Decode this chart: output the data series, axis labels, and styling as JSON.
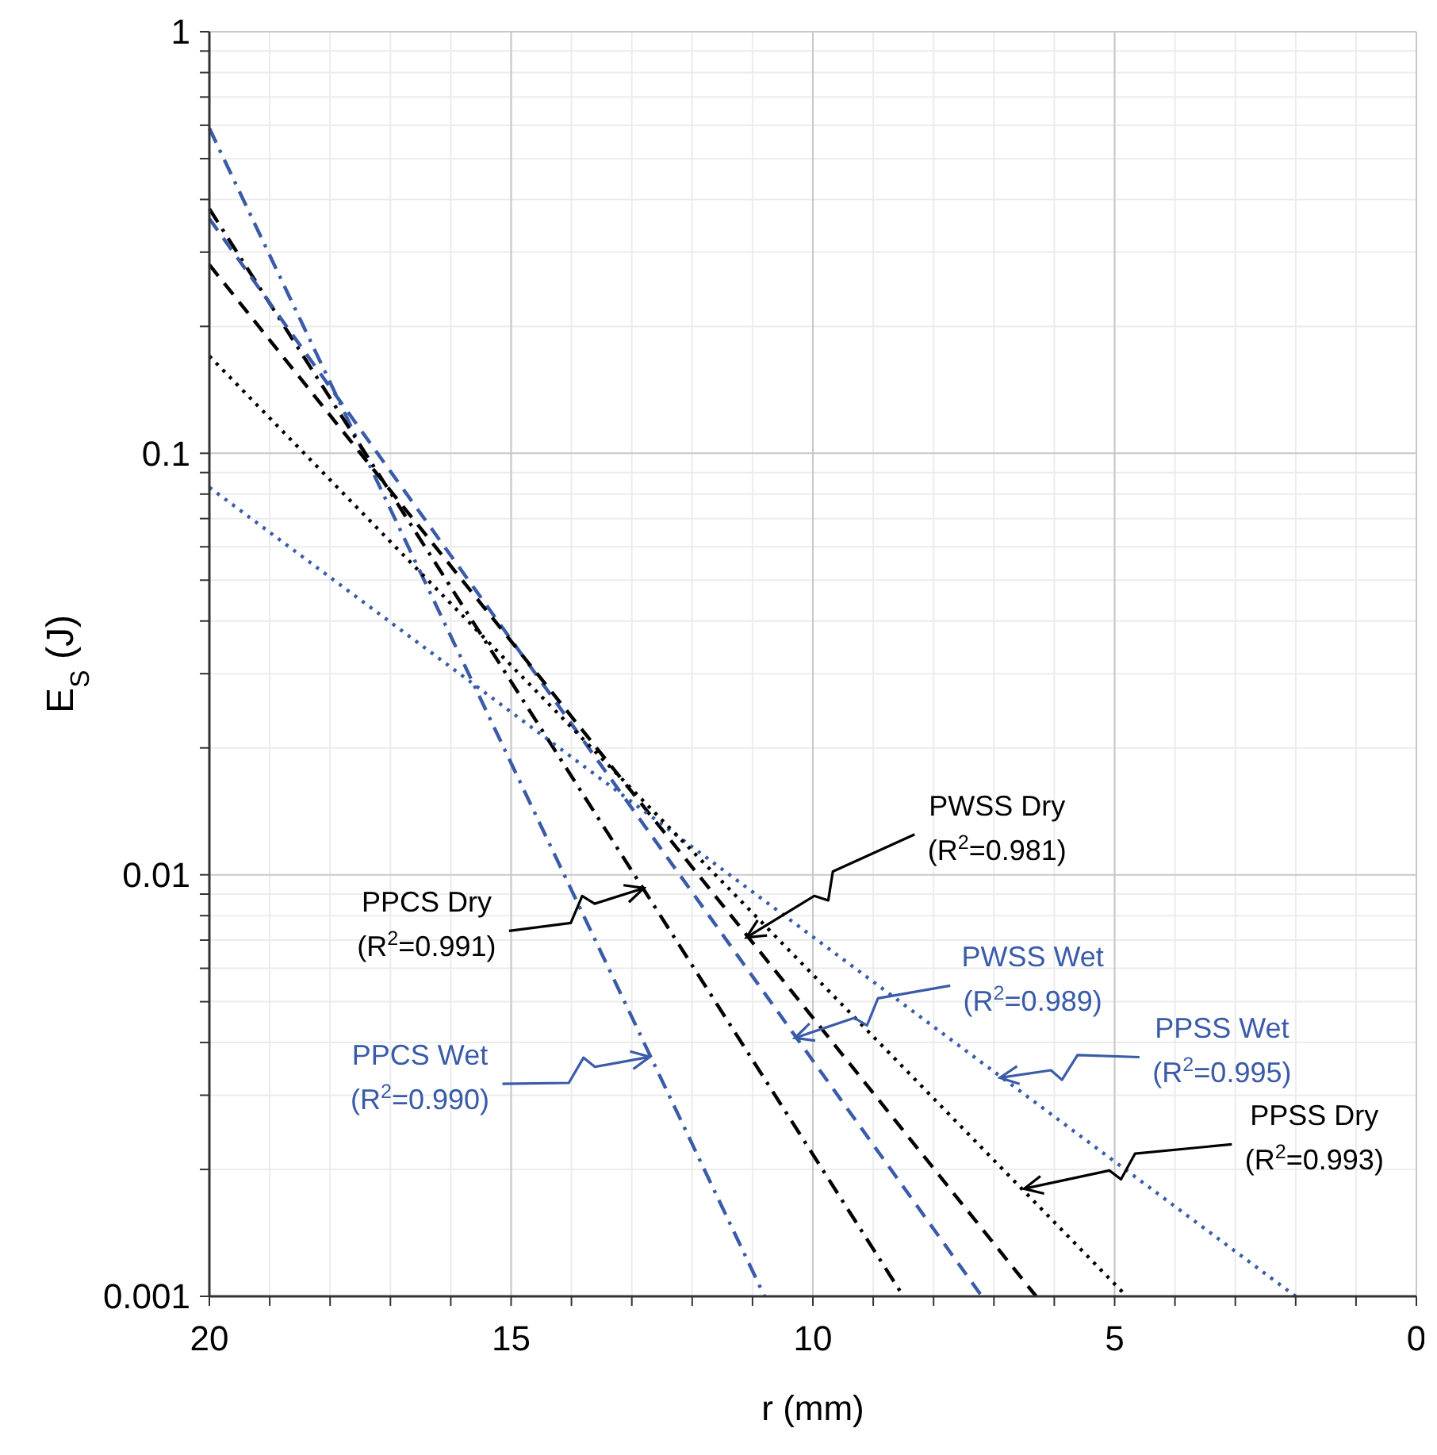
{
  "chart_data": {
    "type": "line",
    "xlabel": "r (mm)",
    "ylabel": "E$_{S}$ (J)",
    "xlim": [
      20,
      0
    ],
    "xticks": [
      20,
      15,
      10,
      5,
      0
    ],
    "ylim": [
      0.001,
      1
    ],
    "yticks": [
      0.001,
      0.01,
      0.1,
      1
    ],
    "log": true,
    "grid": true,
    "marker": "none",
    "series": [
      {
        "color": "#3a5ba8",
        "line_style": "dashdot",
        "x": [
          20,
          10.8
        ],
        "values": [
          0.59,
          0.001
        ]
      },
      {
        "color": "#000000",
        "line_style": "dashdot",
        "x": [
          20,
          8.5
        ],
        "values": [
          0.38,
          0.001
        ]
      },
      {
        "color": "#3a5ba8",
        "line_style": "dashed",
        "x": [
          20,
          7.2
        ],
        "values": [
          0.36,
          0.001
        ]
      },
      {
        "color": "#000000",
        "line_style": "dashed",
        "x": [
          20,
          6.3
        ],
        "values": [
          0.28,
          0.001
        ]
      },
      {
        "color": "#3a5ba8",
        "line_style": "dotted",
        "x": [
          20,
          2.0
        ],
        "values": [
          0.083,
          0.001
        ]
      },
      {
        "color": "#000000",
        "line_style": "dotted",
        "x": [
          20,
          4.8
        ],
        "values": [
          0.17,
          0.001
        ]
      }
    ],
    "annotations": [
      {
        "text": "PPCS Wet\n(R$^{2}$=0.990)",
        "x": 12.7,
        "y": 0.0037
      },
      {
        "text": "PPCS Dry\n(R$^{2}$=0.991)",
        "x": 12.8,
        "y": 0.0093
      },
      {
        "text": "PWSS Wet\n(R$^{2}$=0.989)",
        "x": 10.3,
        "y": 0.0041
      },
      {
        "text": "PWSS Dry\n(R$^{2}$=0.981)",
        "x": 11.1,
        "y": 0.0071
      },
      {
        "text": "PPSS Wet\n(R$^{2}$=0.995)",
        "x": 6.9,
        "y": 0.0033
      },
      {
        "text": "PPSS Dry\n(R$^{2}$=0.993)",
        "x": 6.5,
        "y": 0.0018
      }
    ]
  }
}
